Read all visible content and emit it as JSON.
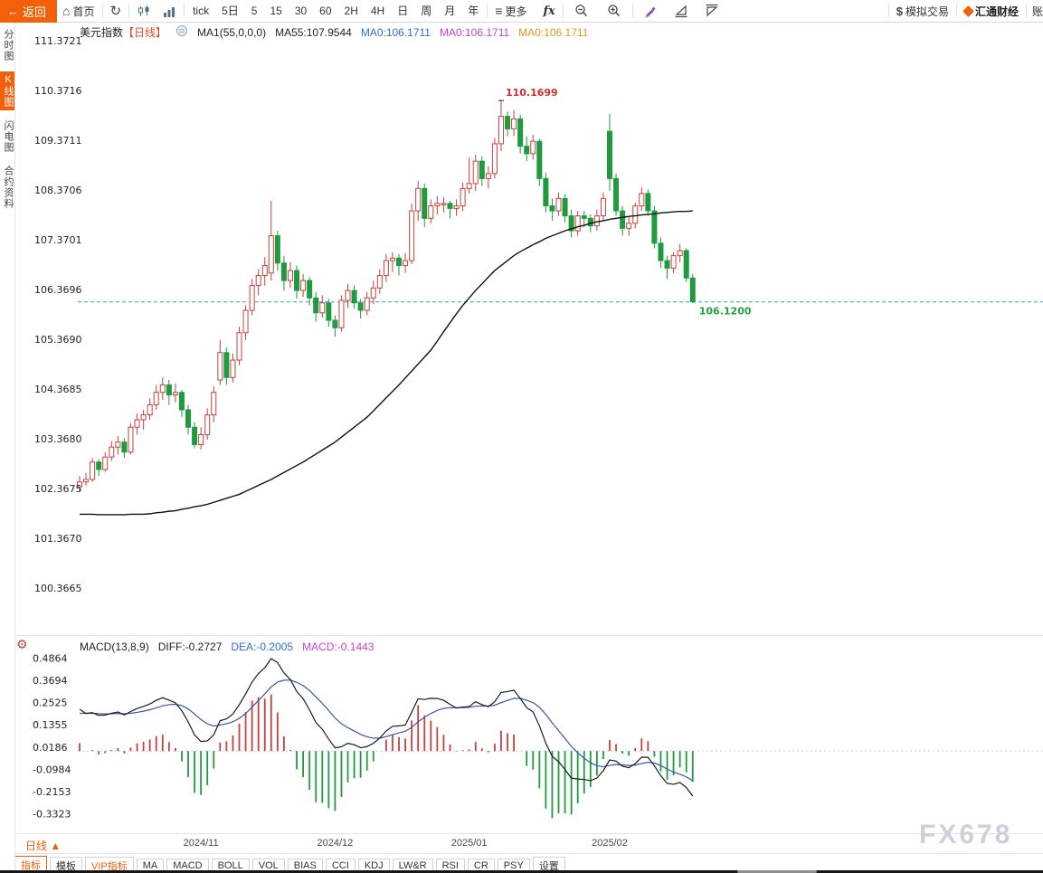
{
  "toolbar": {
    "back": "返回",
    "home": "首页",
    "periods": [
      "tick",
      "5日",
      "5",
      "15",
      "30",
      "60",
      "2H",
      "4H",
      "日",
      "周",
      "月",
      "年"
    ],
    "more": "更多",
    "fx": "fx",
    "sim_trade": "模拟交易",
    "brand": "汇通财经",
    "truncated": "账"
  },
  "sidebar": {
    "items": [
      {
        "label": "分时图",
        "active": false
      },
      {
        "label": "K线图",
        "active": true
      },
      {
        "label": "闪电图",
        "active": false
      },
      {
        "label": "合约资料",
        "active": false
      }
    ]
  },
  "chart_header": {
    "symbol": "美元指数",
    "period_tag": "【日线】",
    "ma_param": "MA1(55,0,0,0)",
    "ma55": "MA55:107.9544",
    "ma_blue": "MA0:106.1711",
    "ma_magenta": "MA0:106.1711",
    "ma_orange": "MA0:106.1711"
  },
  "macd_header": {
    "title": "MACD(13,8,9)",
    "diff": "DIFF:-0.2727",
    "dea": "DEA:-0.2005",
    "macd": "MACD:-0.1443"
  },
  "annotations": {
    "peak": "110.1699",
    "last": "106.1200"
  },
  "bottom": {
    "period_label": "日线",
    "period_arrow": "▲",
    "tabs": [
      {
        "label": "指标",
        "style": "primary"
      },
      {
        "label": "模板",
        "style": ""
      },
      {
        "label": "VIP指标",
        "style": "vip"
      },
      {
        "label": "MA",
        "style": ""
      },
      {
        "label": "MACD",
        "style": ""
      },
      {
        "label": "BOLL",
        "style": ""
      },
      {
        "label": "VOL",
        "style": ""
      },
      {
        "label": "BIAS",
        "style": ""
      },
      {
        "label": "CCI",
        "style": ""
      },
      {
        "label": "KDJ",
        "style": ""
      },
      {
        "label": "LW&R",
        "style": ""
      },
      {
        "label": "RSI",
        "style": ""
      },
      {
        "label": "CR",
        "style": ""
      },
      {
        "label": "PSY",
        "style": ""
      },
      {
        "label": "设置",
        "style": ""
      }
    ]
  },
  "watermark": "FX678",
  "chart_data": {
    "type": "candlestick",
    "title": "美元指数 日线",
    "y_ticks": [
      "111.3721",
      "110.3716",
      "109.3711",
      "108.3706",
      "107.3701",
      "106.3696",
      "105.3690",
      "104.3685",
      "103.3680",
      "102.3675",
      "101.3670",
      "100.3665"
    ],
    "macd_ticks": [
      "0.4864",
      "0.3694",
      "0.2525",
      "0.1355",
      "0.0186",
      "-0.0984",
      "-0.2153",
      "-0.3323"
    ],
    "xlabels": [
      {
        "i": 19,
        "t": "2024/11"
      },
      {
        "i": 40,
        "t": "2024/12"
      },
      {
        "i": 61,
        "t": "2025/01"
      },
      {
        "i": 83,
        "t": "2025/02"
      }
    ],
    "last_price": 106.12,
    "peak_price": 110.1699,
    "peak_index": 66,
    "ma55_last": 107.9544,
    "macd_values": {
      "diff": -0.2727,
      "dea": -0.2005,
      "macd": -0.1443
    },
    "colors": {
      "up": "#c8403c",
      "down": "#1f9a3e",
      "ma": "#111111",
      "dash": "#3a9bc8",
      "diff_line": "#1a1a1a",
      "dea_line": "#3a56a8",
      "peak_label": "#cc2f2f",
      "last_label": "#1fa43d"
    },
    "candles": [
      [
        102.4,
        102.62,
        102.3,
        102.5
      ],
      [
        102.5,
        102.68,
        102.42,
        102.55
      ],
      [
        102.55,
        102.98,
        102.5,
        102.9
      ],
      [
        102.9,
        102.95,
        102.62,
        102.75
      ],
      [
        102.75,
        103.1,
        102.7,
        103.0
      ],
      [
        103.0,
        103.32,
        102.92,
        103.2
      ],
      [
        103.2,
        103.42,
        103.05,
        103.3
      ],
      [
        103.3,
        103.38,
        102.98,
        103.1
      ],
      [
        103.1,
        103.68,
        103.05,
        103.6
      ],
      [
        103.6,
        103.88,
        103.45,
        103.75
      ],
      [
        103.75,
        103.95,
        103.55,
        103.85
      ],
      [
        103.85,
        104.18,
        103.75,
        104.05
      ],
      [
        104.05,
        104.45,
        103.95,
        104.3
      ],
      [
        104.3,
        104.6,
        104.15,
        104.45
      ],
      [
        104.45,
        104.55,
        104.05,
        104.25
      ],
      [
        104.25,
        104.48,
        104.1,
        104.3
      ],
      [
        104.3,
        104.35,
        103.8,
        103.95
      ],
      [
        103.95,
        104.05,
        103.45,
        103.6
      ],
      [
        103.6,
        103.7,
        103.18,
        103.25
      ],
      [
        103.25,
        103.6,
        103.15,
        103.45
      ],
      [
        103.45,
        103.98,
        103.35,
        103.85
      ],
      [
        103.85,
        104.42,
        103.7,
        104.3
      ],
      [
        104.55,
        105.35,
        104.45,
        105.1
      ],
      [
        105.1,
        105.2,
        104.45,
        104.6
      ],
      [
        104.6,
        105.08,
        104.5,
        104.95
      ],
      [
        104.95,
        105.62,
        104.85,
        105.5
      ],
      [
        105.5,
        106.05,
        105.35,
        105.95
      ],
      [
        105.95,
        106.58,
        105.85,
        106.45
      ],
      [
        106.45,
        106.78,
        106.25,
        106.65
      ],
      [
        106.65,
        107.02,
        106.45,
        106.85
      ],
      [
        106.7,
        108.15,
        106.55,
        107.45
      ],
      [
        107.45,
        107.55,
        106.75,
        106.9
      ],
      [
        106.9,
        107.05,
        106.35,
        106.55
      ],
      [
        106.55,
        106.92,
        106.4,
        106.75
      ],
      [
        106.75,
        106.85,
        106.18,
        106.35
      ],
      [
        106.35,
        106.68,
        106.22,
        106.55
      ],
      [
        106.55,
        106.62,
        106.05,
        106.2
      ],
      [
        106.2,
        106.32,
        105.72,
        105.9
      ],
      [
        105.9,
        106.25,
        105.8,
        106.1
      ],
      [
        106.1,
        106.18,
        105.62,
        105.75
      ],
      [
        105.75,
        105.85,
        105.42,
        105.6
      ],
      [
        105.6,
        106.25,
        105.52,
        106.15
      ],
      [
        106.15,
        106.48,
        106.0,
        106.35
      ],
      [
        106.35,
        106.45,
        105.98,
        106.1
      ],
      [
        106.1,
        106.18,
        105.78,
        105.95
      ],
      [
        105.95,
        106.32,
        105.85,
        106.2
      ],
      [
        106.2,
        106.55,
        106.08,
        106.4
      ],
      [
        106.4,
        106.78,
        106.28,
        106.65
      ],
      [
        106.65,
        107.08,
        106.52,
        106.95
      ],
      [
        106.95,
        107.12,
        106.72,
        107.0
      ],
      [
        107.0,
        107.08,
        106.65,
        106.85
      ],
      [
        106.85,
        107.1,
        106.7,
        106.95
      ],
      [
        106.95,
        108.1,
        106.88,
        107.95
      ],
      [
        107.95,
        108.55,
        107.75,
        108.4
      ],
      [
        108.4,
        108.5,
        107.62,
        107.8
      ],
      [
        107.8,
        108.18,
        107.7,
        108.05
      ],
      [
        108.05,
        108.25,
        107.88,
        108.1
      ],
      [
        108.1,
        108.22,
        107.92,
        108.1
      ],
      [
        108.1,
        108.15,
        107.8,
        108.0
      ],
      [
        108.0,
        108.18,
        107.85,
        108.05
      ],
      [
        108.05,
        108.52,
        107.95,
        108.4
      ],
      [
        108.4,
        109.02,
        108.3,
        108.5
      ],
      [
        108.5,
        109.08,
        108.35,
        108.95
      ],
      [
        108.95,
        109.05,
        108.45,
        108.6
      ],
      [
        108.6,
        108.85,
        108.4,
        108.7
      ],
      [
        108.7,
        109.42,
        108.6,
        109.3
      ],
      [
        109.3,
        110.17,
        109.15,
        109.85
      ],
      [
        109.85,
        109.95,
        109.45,
        109.6
      ],
      [
        109.6,
        109.98,
        109.45,
        109.8
      ],
      [
        109.8,
        109.88,
        109.1,
        109.25
      ],
      [
        109.25,
        109.45,
        108.95,
        109.1
      ],
      [
        109.1,
        109.48,
        108.98,
        109.35
      ],
      [
        109.35,
        109.4,
        108.45,
        108.6
      ],
      [
        108.6,
        108.72,
        107.92,
        108.05
      ],
      [
        108.05,
        108.2,
        107.75,
        107.95
      ],
      [
        107.95,
        108.32,
        107.85,
        108.2
      ],
      [
        108.2,
        108.28,
        107.72,
        107.85
      ],
      [
        107.85,
        107.98,
        107.42,
        107.55
      ],
      [
        107.55,
        107.95,
        107.45,
        107.85
      ],
      [
        107.85,
        107.95,
        107.62,
        107.8
      ],
      [
        107.8,
        107.88,
        107.52,
        107.65
      ],
      [
        107.65,
        107.98,
        107.55,
        107.85
      ],
      [
        107.85,
        108.32,
        107.75,
        108.2
      ],
      [
        109.55,
        109.9,
        108.35,
        108.6
      ],
      [
        108.6,
        108.7,
        107.85,
        107.95
      ],
      [
        107.95,
        108.05,
        107.45,
        107.6
      ],
      [
        107.6,
        107.85,
        107.45,
        107.7
      ],
      [
        107.7,
        108.12,
        107.6,
        108.05
      ],
      [
        108.05,
        108.42,
        107.95,
        108.3
      ],
      [
        108.3,
        108.38,
        107.85,
        107.95
      ],
      [
        107.95,
        108.05,
        107.2,
        107.3
      ],
      [
        107.3,
        107.42,
        106.8,
        106.95
      ],
      [
        106.95,
        107.05,
        106.58,
        106.8
      ],
      [
        106.8,
        107.12,
        106.7,
        107.05
      ],
      [
        107.05,
        107.28,
        106.92,
        107.15
      ],
      [
        107.15,
        107.2,
        106.52,
        106.6
      ],
      [
        106.6,
        106.68,
        106.1,
        106.12
      ]
    ],
    "ma55": [
      101.85,
      101.85,
      101.85,
      101.84,
      101.84,
      101.84,
      101.84,
      101.84,
      101.85,
      101.85,
      101.85,
      101.86,
      101.88,
      101.89,
      101.91,
      101.92,
      101.95,
      101.97,
      102.0,
      102.02,
      102.05,
      102.09,
      102.13,
      102.17,
      102.21,
      102.25,
      102.31,
      102.37,
      102.43,
      102.49,
      102.55,
      102.62,
      102.69,
      102.76,
      102.83,
      102.9,
      102.98,
      103.06,
      103.14,
      103.22,
      103.3,
      103.4,
      103.5,
      103.6,
      103.7,
      103.8,
      103.93,
      104.06,
      104.19,
      104.32,
      104.45,
      104.59,
      104.73,
      104.87,
      105.01,
      105.15,
      105.33,
      105.52,
      105.7,
      105.88,
      106.05,
      106.2,
      106.35,
      106.48,
      106.62,
      106.75,
      106.85,
      106.95,
      107.05,
      107.13,
      107.2,
      107.27,
      107.33,
      107.4,
      107.45,
      107.5,
      107.55,
      107.59,
      107.63,
      107.66,
      107.7,
      107.73,
      107.75,
      107.78,
      107.8,
      107.82,
      107.84,
      107.85,
      107.87,
      107.88,
      107.89,
      107.91,
      107.92,
      107.93,
      107.94,
      107.94,
      107.95
    ]
  }
}
